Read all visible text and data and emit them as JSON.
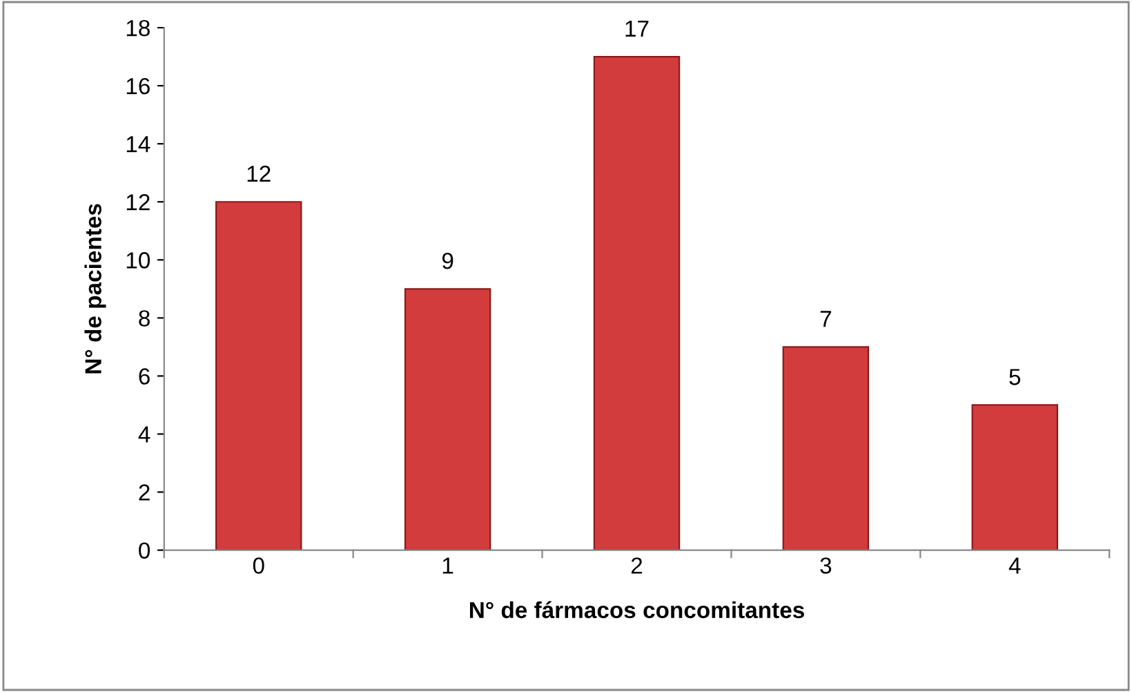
{
  "chart_data": {
    "type": "bar",
    "xlabel": "N° de fármacos concomitantes",
    "ylabel": "N° de pacientes",
    "categories": [
      "0",
      "1",
      "2",
      "3",
      "4"
    ],
    "values": [
      12,
      9,
      17,
      7,
      5
    ],
    "color": "#d23c3c",
    "ylim": [
      0,
      18
    ],
    "yticks": [
      0,
      2,
      4,
      6,
      8,
      10,
      12,
      14,
      16,
      18
    ],
    "data_labels": true,
    "grid": false
  }
}
